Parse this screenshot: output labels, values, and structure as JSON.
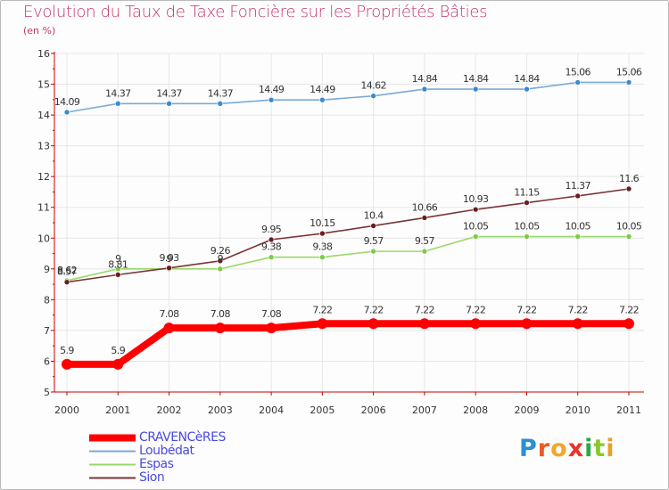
{
  "title": "Evolution du Taux de Taxe Foncière sur les Propriétés Bâties",
  "unit_label": "(en %)",
  "logo_text": "Proxiti",
  "colors": {
    "title": "#c2366f",
    "legend_text": "#4a4adf",
    "axis": "#cc0000",
    "grid": "#e6e6e6"
  },
  "chart_data": {
    "type": "line",
    "title": "Evolution du Taux de Taxe Foncière sur les Propriétés Bâties",
    "ylabel": "(en %)",
    "xlabel": "",
    "ylim": [
      5,
      16
    ],
    "yticks": [
      "5",
      "6",
      "7",
      "8",
      "9",
      "10",
      "11",
      "12",
      "13",
      "14",
      "15",
      "16"
    ],
    "categories": [
      "2000",
      "2001",
      "2002",
      "2003",
      "2004",
      "2005",
      "2006",
      "2007",
      "2008",
      "2009",
      "2010",
      "2011"
    ],
    "legend_position": "bottom-left",
    "series": [
      {
        "name": "CRAVENCèRES",
        "color": "#ff0000",
        "marker": "#ff0000",
        "values": [
          5.9,
          5.9,
          7.08,
          7.08,
          7.08,
          7.22,
          7.22,
          7.22,
          7.22,
          7.22,
          7.22,
          7.22
        ],
        "labels": [
          "5.9",
          "5.9",
          "7.08",
          "7.08",
          "7.08",
          "7.22",
          "7.22",
          "7.22",
          "7.22",
          "7.22",
          "7.22",
          "7.22"
        ]
      },
      {
        "name": "Loubédat",
        "color": "#7aaad6",
        "marker": "#3a8ad0",
        "values": [
          14.09,
          14.37,
          14.37,
          14.37,
          14.49,
          14.49,
          14.62,
          14.84,
          14.84,
          14.84,
          15.06,
          15.06
        ],
        "labels": [
          "14.09",
          "14.37",
          "14.37",
          "14.37",
          "14.49",
          "14.49",
          "14.62",
          "14.84",
          "14.84",
          "14.84",
          "15.06",
          "15.06"
        ]
      },
      {
        "name": "Espas",
        "color": "#9ad86a",
        "marker": "#7ccc44",
        "values": [
          8.62,
          9.0,
          9.0,
          9.0,
          9.38,
          9.38,
          9.57,
          9.57,
          10.05,
          10.05,
          10.05,
          10.05
        ],
        "labels": [
          "8.62",
          "9",
          "9",
          "9",
          "9.38",
          "9.38",
          "9.57",
          "9.57",
          "10.05",
          "10.05",
          "10.05",
          "10.05"
        ]
      },
      {
        "name": "Sion",
        "color": "#7a3535",
        "marker": "#6a1e1e",
        "values": [
          8.57,
          8.81,
          9.03,
          9.26,
          9.95,
          10.15,
          10.4,
          10.66,
          10.93,
          11.15,
          11.37,
          11.6
        ],
        "labels": [
          "8.57",
          "8.81",
          "9.03",
          "9.26",
          "9.95",
          "10.15",
          "10.4",
          "10.66",
          "10.93",
          "11.15",
          "11.37",
          "11.6"
        ]
      }
    ]
  }
}
